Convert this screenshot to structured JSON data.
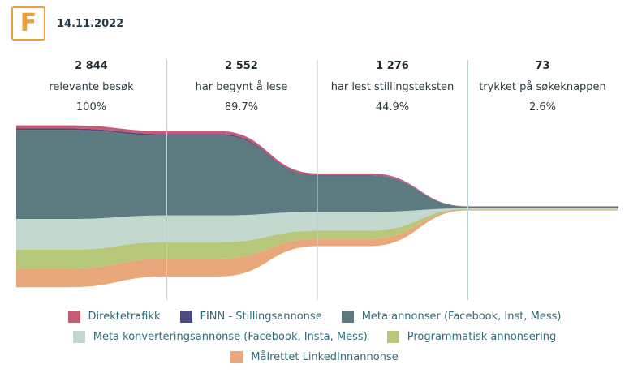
{
  "header": {
    "logo_letter": "F",
    "date": "14.11.2022"
  },
  "stages": [
    {
      "count": "2 844",
      "label": "relevante besøk",
      "pct": "100%"
    },
    {
      "count": "2 552",
      "label": "har begynt å lese",
      "pct": "89.7%"
    },
    {
      "count": "1 276",
      "label": "har lest stillingsteksten",
      "pct": "44.9%"
    },
    {
      "count": "73",
      "label": "trykket på søkeknappen",
      "pct": "2.6%"
    }
  ],
  "chart_data": {
    "type": "area",
    "x": [
      "relevante besøk",
      "har begynt å lese",
      "har lest stillingsteksten",
      "trykket på søkeknappen"
    ],
    "totals": [
      2844,
      2552,
      1276,
      73
    ],
    "series": [
      {
        "name": "Direktetrafikk",
        "color": "#c95a74",
        "values": [
          55,
          52,
          30,
          2
        ]
      },
      {
        "name": "FINN - Stillingsannonse",
        "color": "#4b4a86",
        "values": [
          25,
          24,
          10,
          1
        ]
      },
      {
        "name": "Meta annonser (Facebook, Inst, Mess)",
        "color": "#5b7b81",
        "values": [
          1564,
          1405,
          636,
          34
        ]
      },
      {
        "name": "Meta konverteringsannonse (Facebook, Insta, Mess)",
        "color": "#c3d8cf",
        "values": [
          540,
          470,
          330,
          10
        ]
      },
      {
        "name": "Programmatisk annonsering",
        "color": "#b8c87a",
        "values": [
          330,
          290,
          140,
          10
        ]
      },
      {
        "name": "Målrettet LinkedInnannonse",
        "color": "#e8a87c",
        "values": [
          330,
          311,
          130,
          16
        ]
      }
    ]
  }
}
